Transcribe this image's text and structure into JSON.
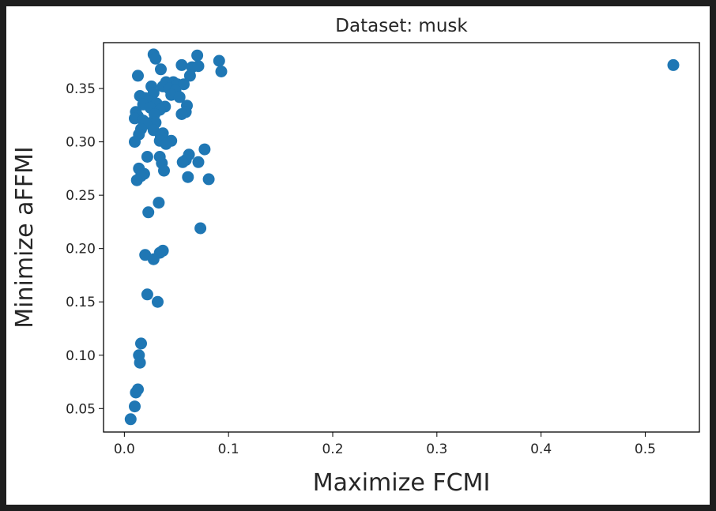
{
  "chart_data": {
    "type": "scatter",
    "title": "Dataset: musk",
    "xlabel": "Maximize FCMI",
    "ylabel": "Minimize aFFMI",
    "xlim": [
      -0.02,
      0.552
    ],
    "ylim": [
      0.028,
      0.393
    ],
    "xticks": [
      0.0,
      0.1,
      0.2,
      0.3,
      0.4,
      0.5
    ],
    "xtick_labels": [
      "0.0",
      "0.1",
      "0.2",
      "0.3",
      "0.4",
      "0.5"
    ],
    "yticks": [
      0.05,
      0.1,
      0.15,
      0.2,
      0.25,
      0.3,
      0.35
    ],
    "ytick_labels": [
      "0.05",
      "0.10",
      "0.15",
      "0.20",
      "0.25",
      "0.30",
      "0.35"
    ],
    "grid": false,
    "legend": "none",
    "marker_color": "#1f77b4",
    "points": [
      [
        0.527,
        0.372
      ],
      [
        0.028,
        0.382
      ],
      [
        0.03,
        0.378
      ],
      [
        0.07,
        0.381
      ],
      [
        0.091,
        0.376
      ],
      [
        0.093,
        0.366
      ],
      [
        0.055,
        0.372
      ],
      [
        0.065,
        0.37
      ],
      [
        0.071,
        0.371
      ],
      [
        0.035,
        0.368
      ],
      [
        0.013,
        0.362
      ],
      [
        0.063,
        0.362
      ],
      [
        0.04,
        0.356
      ],
      [
        0.047,
        0.356
      ],
      [
        0.051,
        0.354
      ],
      [
        0.057,
        0.354
      ],
      [
        0.026,
        0.352
      ],
      [
        0.037,
        0.352
      ],
      [
        0.043,
        0.35
      ],
      [
        0.049,
        0.348
      ],
      [
        0.028,
        0.346
      ],
      [
        0.045,
        0.344
      ],
      [
        0.015,
        0.343
      ],
      [
        0.02,
        0.341
      ],
      [
        0.053,
        0.342
      ],
      [
        0.023,
        0.338
      ],
      [
        0.018,
        0.335
      ],
      [
        0.031,
        0.336
      ],
      [
        0.06,
        0.334
      ],
      [
        0.025,
        0.332
      ],
      [
        0.039,
        0.333
      ],
      [
        0.011,
        0.328
      ],
      [
        0.034,
        0.33
      ],
      [
        0.059,
        0.328
      ],
      [
        0.055,
        0.326
      ],
      [
        0.029,
        0.326
      ],
      [
        0.013,
        0.324
      ],
      [
        0.01,
        0.322
      ],
      [
        0.018,
        0.32
      ],
      [
        0.026,
        0.318
      ],
      [
        0.03,
        0.318
      ],
      [
        0.021,
        0.317
      ],
      [
        0.016,
        0.312
      ],
      [
        0.028,
        0.311
      ],
      [
        0.014,
        0.307
      ],
      [
        0.037,
        0.308
      ],
      [
        0.035,
        0.305
      ],
      [
        0.034,
        0.301
      ],
      [
        0.045,
        0.301
      ],
      [
        0.01,
        0.3
      ],
      [
        0.04,
        0.298
      ],
      [
        0.077,
        0.293
      ],
      [
        0.062,
        0.288
      ],
      [
        0.034,
        0.286
      ],
      [
        0.022,
        0.286
      ],
      [
        0.059,
        0.283
      ],
      [
        0.056,
        0.281
      ],
      [
        0.071,
        0.281
      ],
      [
        0.036,
        0.28
      ],
      [
        0.014,
        0.275
      ],
      [
        0.038,
        0.273
      ],
      [
        0.019,
        0.27
      ],
      [
        0.016,
        0.268
      ],
      [
        0.061,
        0.267
      ],
      [
        0.081,
        0.265
      ],
      [
        0.012,
        0.264
      ],
      [
        0.033,
        0.243
      ],
      [
        0.023,
        0.234
      ],
      [
        0.073,
        0.219
      ],
      [
        0.037,
        0.198
      ],
      [
        0.034,
        0.196
      ],
      [
        0.02,
        0.194
      ],
      [
        0.028,
        0.19
      ],
      [
        0.022,
        0.157
      ],
      [
        0.032,
        0.15
      ],
      [
        0.016,
        0.111
      ],
      [
        0.014,
        0.1
      ],
      [
        0.015,
        0.093
      ],
      [
        0.013,
        0.068
      ],
      [
        0.011,
        0.065
      ],
      [
        0.01,
        0.052
      ],
      [
        0.006,
        0.04
      ]
    ]
  }
}
